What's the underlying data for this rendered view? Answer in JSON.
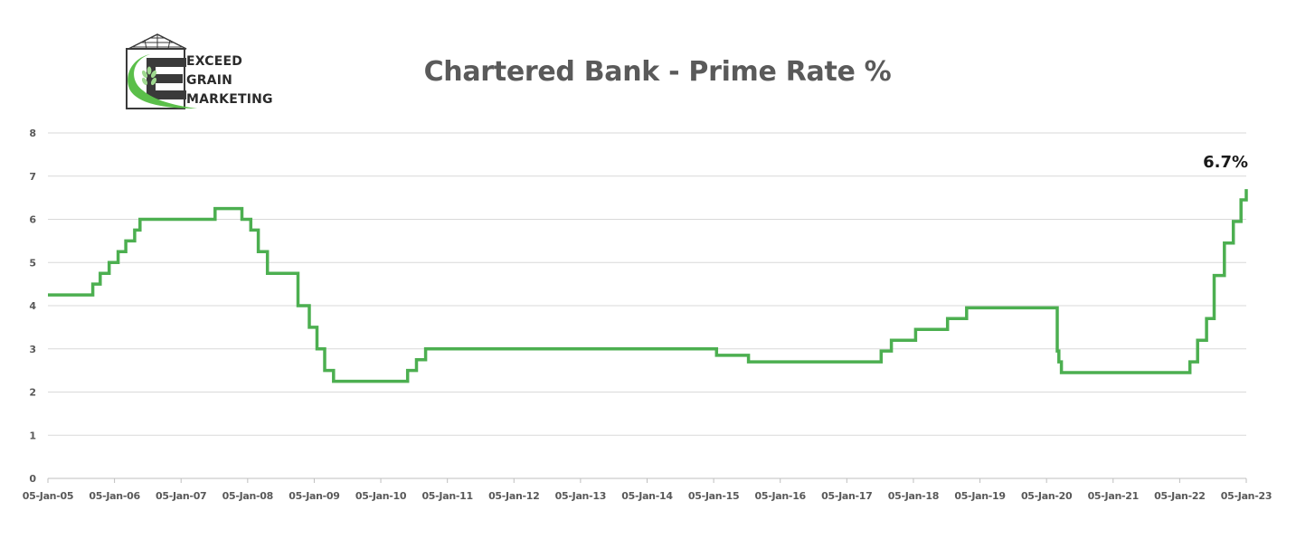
{
  "logo": {
    "line1": "EXCEED",
    "line2": "GRAIN",
    "line3": "MARKETING",
    "colors": {
      "green": "#5bbf4a",
      "dark": "#3a3a3a"
    }
  },
  "chart_data": {
    "type": "line",
    "title": "Chartered Bank - Prime Rate %",
    "xlabel": "",
    "ylabel": "",
    "ylim": [
      0,
      8
    ],
    "yticks": [
      0,
      1,
      2,
      3,
      4,
      5,
      6,
      7,
      8
    ],
    "xlim": [
      "2005-01-05",
      "2023-01-05"
    ],
    "xtick_labels": [
      "05-Jan-05",
      "05-Jan-06",
      "05-Jan-07",
      "05-Jan-08",
      "05-Jan-09",
      "05-Jan-10",
      "05-Jan-11",
      "05-Jan-12",
      "05-Jan-13",
      "05-Jan-14",
      "05-Jan-15",
      "05-Jan-16",
      "05-Jan-17",
      "05-Jan-18",
      "05-Jan-19",
      "05-Jan-20",
      "05-Jan-21",
      "05-Jan-22",
      "05-Jan-23"
    ],
    "grid": true,
    "line_color": "#4caf50",
    "annotation": {
      "text": "6.7%",
      "x": "2023-01-05",
      "y": 6.7
    },
    "series": [
      {
        "points": [
          [
            "2005-01-05",
            4.25
          ],
          [
            "2005-09-08",
            4.5
          ],
          [
            "2005-10-19",
            4.75
          ],
          [
            "2005-12-07",
            5.0
          ],
          [
            "2006-01-25",
            5.25
          ],
          [
            "2006-03-08",
            5.5
          ],
          [
            "2006-04-26",
            5.75
          ],
          [
            "2006-05-25",
            6.0
          ],
          [
            "2007-07-11",
            6.25
          ],
          [
            "2007-12-05",
            6.0
          ],
          [
            "2008-01-23",
            5.75
          ],
          [
            "2008-03-04",
            5.25
          ],
          [
            "2008-04-23",
            4.75
          ],
          [
            "2008-10-08",
            4.0
          ],
          [
            "2008-12-09",
            3.5
          ],
          [
            "2009-01-20",
            3.0
          ],
          [
            "2009-03-03",
            2.5
          ],
          [
            "2009-04-21",
            2.25
          ],
          [
            "2010-06-01",
            2.5
          ],
          [
            "2010-07-20",
            2.75
          ],
          [
            "2010-09-08",
            3.0
          ],
          [
            "2015-01-21",
            2.85
          ],
          [
            "2015-07-15",
            2.7
          ],
          [
            "2017-07-12",
            2.95
          ],
          [
            "2017-09-06",
            3.2
          ],
          [
            "2018-01-17",
            3.45
          ],
          [
            "2018-07-11",
            3.7
          ],
          [
            "2018-10-24",
            3.95
          ],
          [
            "2020-03-04",
            2.95
          ],
          [
            "2020-03-13",
            2.7
          ],
          [
            "2020-03-27",
            2.45
          ],
          [
            "2022-03-02",
            2.7
          ],
          [
            "2022-04-13",
            3.2
          ],
          [
            "2022-06-01",
            3.7
          ],
          [
            "2022-07-13",
            4.7
          ],
          [
            "2022-09-07",
            5.45
          ],
          [
            "2022-10-26",
            5.95
          ],
          [
            "2022-12-07",
            6.45
          ],
          [
            "2023-01-05",
            6.7
          ]
        ]
      }
    ]
  }
}
